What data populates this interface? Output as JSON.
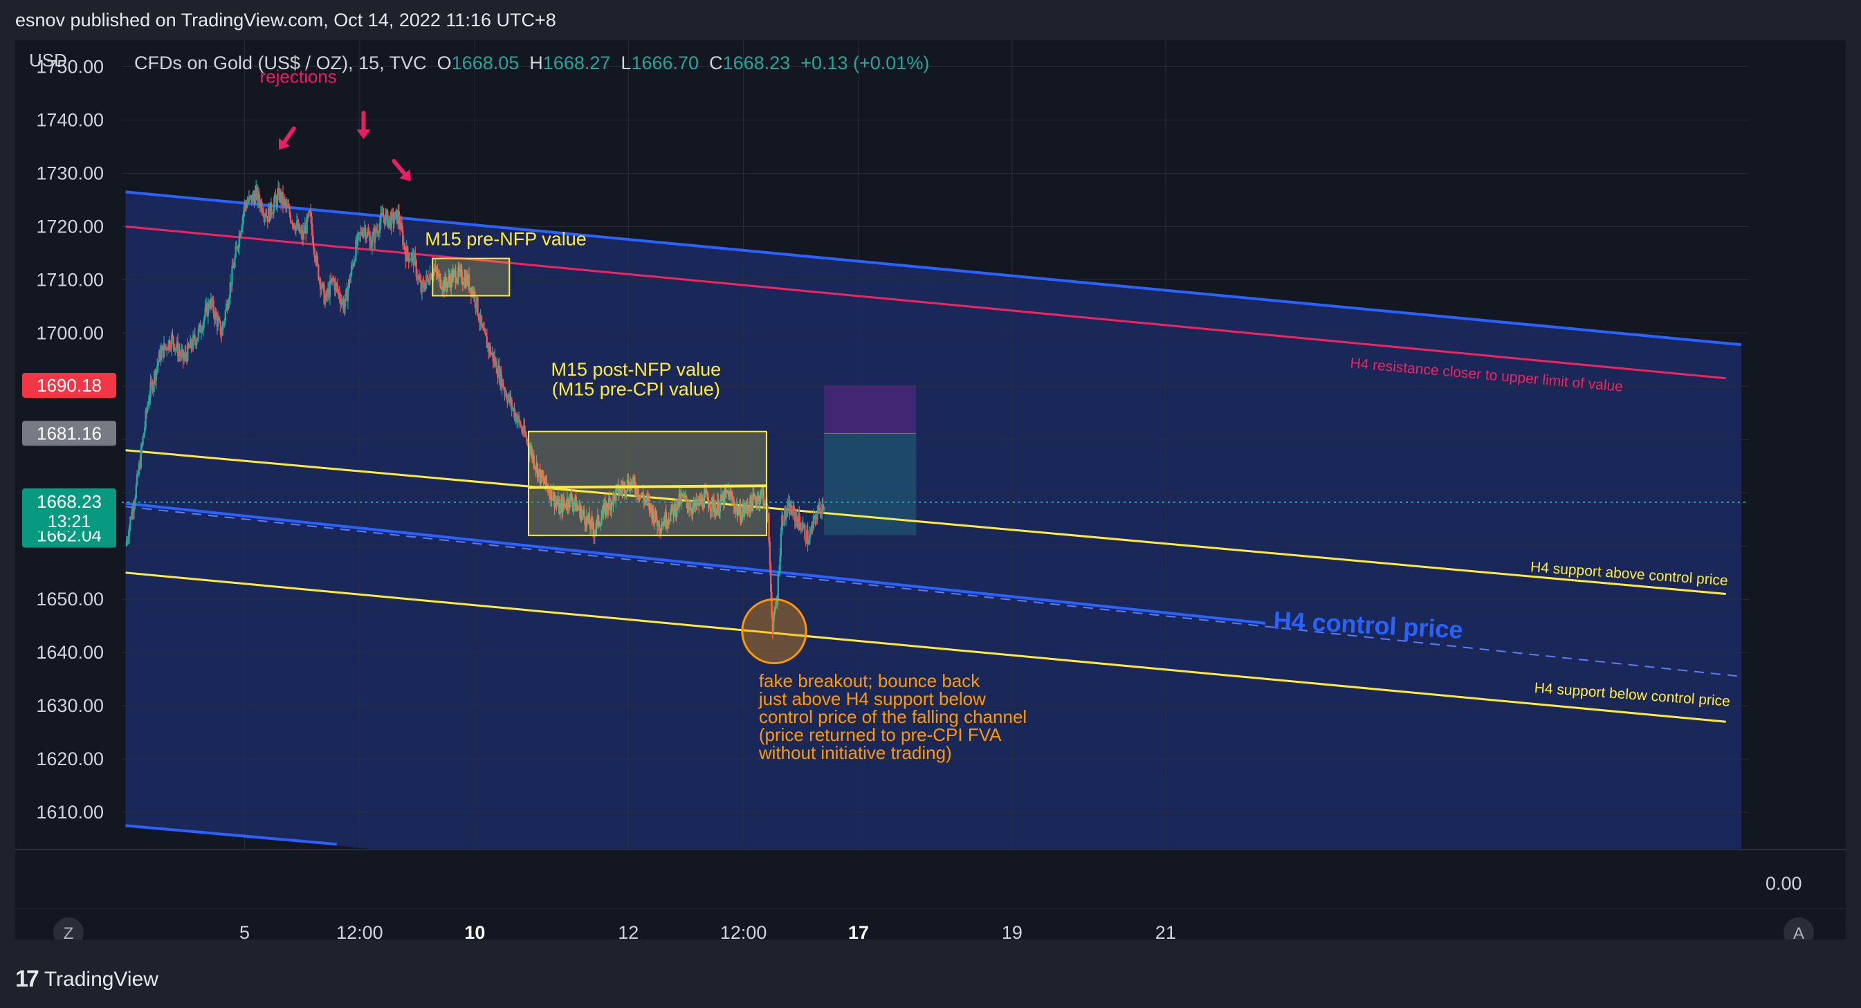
{
  "header": {
    "published": "esnov published on TradingView.com, Oct 14, 2022 11:16 UTC+8"
  },
  "legend": {
    "symbol": "CFDs on Gold (US$ / OZ), 15, TVC",
    "o_label": "O",
    "o_value": "1668.05",
    "h_label": "H",
    "h_value": "1668.27",
    "l_label": "L",
    "l_value": "1666.70",
    "c_label": "C",
    "c_value": "1668.23",
    "change": "+0.13 (+0.01%)"
  },
  "currency": "USD",
  "price_tags": [
    {
      "price": 1690.18,
      "label": "1690.18",
      "bg": "#f23645",
      "name": "price-tag-target"
    },
    {
      "price": 1681.16,
      "label": "1681.16",
      "bg": "#787b86",
      "name": "price-tag-entry"
    },
    {
      "price": 1662.04,
      "label": "1662.04",
      "bg": "#089981",
      "name": "price-tag-stop"
    }
  ],
  "last_price": {
    "price": 1668.23,
    "label": "1668.23",
    "countdown": "13:21",
    "bg": "#089981"
  },
  "lower_pane": {
    "value": "0.00"
  },
  "scale_buttons": {
    "left": "Z",
    "right": "A"
  },
  "footer": {
    "brand": "TradingView",
    "logo_glyph": "17"
  },
  "colors": {
    "up": "#26a69a",
    "down": "#ef5350",
    "channel": "#2962ff",
    "resistance": "#f2245f",
    "support": "#ffeb3b",
    "annotation_orange": "#ff9800",
    "rejection": "#e91e63"
  },
  "chart_data": {
    "type": "candlestick",
    "ylim": [
      1603,
      1755
    ],
    "yticks": [
      1610,
      1620,
      1630,
      1640,
      1650,
      1660,
      1670,
      1680,
      1690,
      1700,
      1710,
      1720,
      1730,
      1740,
      1750
    ],
    "ytick_labels": [
      "1610.00",
      "1620.00",
      "1630.00",
      "1640.00",
      "1650.00",
      "",
      "",
      "",
      "",
      "1700.00",
      "1710.00",
      "1720.00",
      "1730.00",
      "1740.00",
      "1750.00"
    ],
    "xlim": [
      3.4,
      24.6
    ],
    "xticks": [
      {
        "x": 5.0,
        "label": "5",
        "bold": false
      },
      {
        "x": 6.5,
        "label": "12:00",
        "bold": false
      },
      {
        "x": 8.0,
        "label": "10",
        "bold": true
      },
      {
        "x": 10.0,
        "label": "12",
        "bold": false
      },
      {
        "x": 11.5,
        "label": "12:00",
        "bold": false
      },
      {
        "x": 13.0,
        "label": "17",
        "bold": true
      },
      {
        "x": 15.0,
        "label": "19",
        "bold": false
      },
      {
        "x": 17.0,
        "label": "21",
        "bold": false
      }
    ],
    "price_path": [
      [
        3.45,
        1660
      ],
      [
        3.6,
        1672
      ],
      [
        3.75,
        1688
      ],
      [
        3.9,
        1696
      ],
      [
        4.05,
        1699
      ],
      [
        4.2,
        1695
      ],
      [
        4.4,
        1700
      ],
      [
        4.55,
        1706
      ],
      [
        4.7,
        1700
      ],
      [
        4.85,
        1712
      ],
      [
        5.0,
        1724
      ],
      [
        5.15,
        1726
      ],
      [
        5.3,
        1722
      ],
      [
        5.45,
        1726
      ],
      [
        5.6,
        1722
      ],
      [
        5.75,
        1718
      ],
      [
        5.85,
        1722
      ],
      [
        5.95,
        1712
      ],
      [
        6.05,
        1706
      ],
      [
        6.15,
        1710
      ],
      [
        6.3,
        1705
      ],
      [
        6.45,
        1716
      ],
      [
        6.55,
        1720
      ],
      [
        6.65,
        1717
      ],
      [
        6.8,
        1722
      ],
      [
        6.9,
        1721
      ],
      [
        7.0,
        1722
      ],
      [
        7.1,
        1715
      ],
      [
        7.2,
        1714
      ],
      [
        7.3,
        1708
      ],
      [
        7.45,
        1712
      ],
      [
        7.6,
        1709
      ],
      [
        7.75,
        1711
      ],
      [
        7.9,
        1710
      ],
      [
        8.0,
        1707
      ],
      [
        8.1,
        1700
      ],
      [
        8.25,
        1695
      ],
      [
        8.4,
        1689
      ],
      [
        8.55,
        1684
      ],
      [
        8.7,
        1679
      ],
      [
        8.85,
        1673
      ],
      [
        9.0,
        1670
      ],
      [
        9.1,
        1667
      ],
      [
        9.25,
        1669
      ],
      [
        9.4,
        1666
      ],
      [
        9.55,
        1663
      ],
      [
        9.7,
        1667
      ],
      [
        9.85,
        1670
      ],
      [
        10.0,
        1672
      ],
      [
        10.1,
        1671
      ],
      [
        10.25,
        1668
      ],
      [
        10.4,
        1664
      ],
      [
        10.55,
        1666
      ],
      [
        10.7,
        1669
      ],
      [
        10.85,
        1667
      ],
      [
        11.0,
        1669
      ],
      [
        11.15,
        1667
      ],
      [
        11.3,
        1670
      ],
      [
        11.45,
        1666
      ],
      [
        11.6,
        1668
      ],
      [
        11.75,
        1670
      ],
      [
        11.82,
        1665
      ],
      [
        11.88,
        1644
      ],
      [
        11.94,
        1651
      ],
      [
        12.0,
        1665
      ],
      [
        12.1,
        1667
      ],
      [
        12.25,
        1664
      ],
      [
        12.35,
        1661
      ],
      [
        12.45,
        1666
      ],
      [
        12.55,
        1668.23
      ]
    ],
    "annotations": {
      "rejections": "rejections",
      "pre_nfp": "M15 pre-NFP value",
      "post_nfp_1": "M15 post-NFP value",
      "post_nfp_2": "(M15 pre-CPI value)",
      "resistance": "H4 resistance closer to upper limit of value",
      "support_above": "H4 support above control price",
      "control": "H4 control price",
      "support_below": "H4 support below control price",
      "fake_breakout": [
        "fake breakout; bounce back",
        "just above H4 support below",
        "control price of the falling channel",
        "(price returned to pre-CPI FVA",
        "without initiative trading)"
      ]
    },
    "channel_lines": [
      {
        "name": "upper-channel-line",
        "color": "#2962ff",
        "from": [
          3.45,
          1726.5
        ],
        "to": [
          24.5,
          1697.8
        ],
        "width": 4
      },
      {
        "name": "resistance-line",
        "color": "#f2245f",
        "from": [
          3.45,
          1720
        ],
        "to": [
          24.3,
          1691.5
        ],
        "width": 3
      },
      {
        "name": "support-above-line",
        "color": "#ffeb3b",
        "from": [
          3.45,
          1678
        ],
        "to": [
          24.3,
          1651
        ],
        "width": 3
      },
      {
        "name": "control-price-line",
        "color": "#2962ff",
        "from": [
          3.45,
          1668
        ],
        "to": [
          18.3,
          1645.5
        ],
        "width": 4
      },
      {
        "name": "support-below-line",
        "color": "#ffeb3b",
        "from": [
          3.45,
          1655
        ],
        "to": [
          24.3,
          1627
        ],
        "width": 3
      },
      {
        "name": "lower-channel-line",
        "color": "#2962ff",
        "from": [
          3.45,
          1607.5
        ],
        "to": [
          6.2,
          1604
        ],
        "width": 4
      }
    ],
    "value_boxes": [
      {
        "name": "pre-nfp-box",
        "x": [
          7.45,
          8.45
        ],
        "y": [
          1707,
          1714
        ]
      },
      {
        "name": "post-nfp-box",
        "x": [
          8.7,
          11.8
        ],
        "y": [
          1662,
          1681.5
        ]
      }
    ],
    "position": {
      "x": [
        12.55,
        13.75
      ],
      "entry": 1681.16,
      "target": 1690.18,
      "stop": 1662.04
    },
    "breakout_circle": {
      "x": 11.9,
      "y": 1644,
      "r_price": 6
    }
  }
}
